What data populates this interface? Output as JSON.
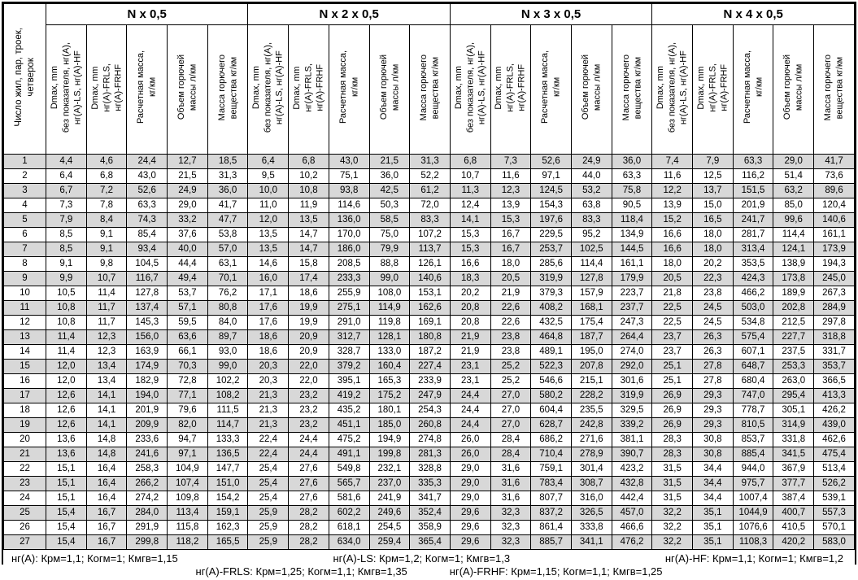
{
  "colors": {
    "border": "#000000",
    "stripe_gray": "#d8d8d8",
    "background": "#ffffff",
    "text": "#000000"
  },
  "table": {
    "corner_header": "Число жил, пар, троек,\nчетверок",
    "groups": [
      {
        "label": "N x 0,5"
      },
      {
        "label": "N x 2 x 0,5"
      },
      {
        "label": "N x 3 x 0,5"
      },
      {
        "label": "N x 4 x 0,5"
      }
    ],
    "sub_headers": [
      "Dmax, mm\nбез показателя, нг(А),\nнг(А)-LS, нг(А)-HF",
      "Dmax, mm\nнг(А)-FRLS,\nнг(А)-FRHF",
      "Расчетная масса,\nкг/км",
      "Объем горючей\nмассы л/км",
      "Масса горючего\nвещества кг/км"
    ],
    "rows": [
      {
        "n": "1",
        "values": [
          "4,4",
          "4,6",
          "24,4",
          "12,7",
          "18,5",
          "6,4",
          "6,8",
          "43,0",
          "21,5",
          "31,3",
          "6,8",
          "7,3",
          "52,6",
          "24,9",
          "36,0",
          "7,4",
          "7,9",
          "63,3",
          "29,0",
          "41,7"
        ]
      },
      {
        "n": "2",
        "values": [
          "6,4",
          "6,8",
          "43,0",
          "21,5",
          "31,3",
          "9,5",
          "10,2",
          "75,1",
          "36,0",
          "52,2",
          "10,7",
          "11,6",
          "97,1",
          "44,0",
          "63,3",
          "11,6",
          "12,5",
          "116,2",
          "51,4",
          "73,6"
        ]
      },
      {
        "n": "3",
        "values": [
          "6,7",
          "7,2",
          "52,6",
          "24,9",
          "36,0",
          "10,0",
          "10,8",
          "93,8",
          "42,5",
          "61,2",
          "11,3",
          "12,3",
          "124,5",
          "53,2",
          "75,8",
          "12,2",
          "13,7",
          "151,5",
          "63,2",
          "89,6"
        ]
      },
      {
        "n": "4",
        "values": [
          "7,3",
          "7,8",
          "63,3",
          "29,0",
          "41,7",
          "11,0",
          "11,9",
          "114,6",
          "50,3",
          "72,0",
          "12,4",
          "13,9",
          "154,3",
          "63,8",
          "90,5",
          "13,9",
          "15,0",
          "201,9",
          "85,0",
          "120,4"
        ]
      },
      {
        "n": "5",
        "values": [
          "7,9",
          "8,4",
          "74,3",
          "33,2",
          "47,7",
          "12,0",
          "13,5",
          "136,0",
          "58,5",
          "83,3",
          "14,1",
          "15,3",
          "197,6",
          "83,3",
          "118,4",
          "15,2",
          "16,5",
          "241,7",
          "99,6",
          "140,6"
        ]
      },
      {
        "n": "6",
        "values": [
          "8,5",
          "9,1",
          "85,4",
          "37,6",
          "53,8",
          "13,5",
          "14,7",
          "170,0",
          "75,0",
          "107,2",
          "15,3",
          "16,7",
          "229,5",
          "95,2",
          "134,9",
          "16,6",
          "18,0",
          "281,7",
          "114,4",
          "161,1"
        ]
      },
      {
        "n": "7",
        "values": [
          "8,5",
          "9,1",
          "93,4",
          "40,0",
          "57,0",
          "13,5",
          "14,7",
          "186,0",
          "79,9",
          "113,7",
          "15,3",
          "16,7",
          "253,7",
          "102,5",
          "144,5",
          "16,6",
          "18,0",
          "313,4",
          "124,1",
          "173,9"
        ]
      },
      {
        "n": "8",
        "values": [
          "9,1",
          "9,8",
          "104,5",
          "44,4",
          "63,1",
          "14,6",
          "15,8",
          "208,5",
          "88,8",
          "126,1",
          "16,6",
          "18,0",
          "285,6",
          "114,4",
          "161,1",
          "18,0",
          "20,2",
          "353,5",
          "138,9",
          "194,3"
        ]
      },
      {
        "n": "9",
        "values": [
          "9,9",
          "10,7",
          "116,7",
          "49,4",
          "70,1",
          "16,0",
          "17,4",
          "233,3",
          "99,0",
          "140,6",
          "18,3",
          "20,5",
          "319,9",
          "127,8",
          "179,9",
          "20,5",
          "22,3",
          "424,3",
          "173,8",
          "245,0"
        ]
      },
      {
        "n": "10",
        "values": [
          "10,5",
          "11,4",
          "127,8",
          "53,7",
          "76,2",
          "17,1",
          "18,6",
          "255,9",
          "108,0",
          "153,1",
          "20,2",
          "21,9",
          "379,3",
          "157,9",
          "223,7",
          "21,8",
          "23,8",
          "466,2",
          "189,9",
          "267,3"
        ]
      },
      {
        "n": "11",
        "values": [
          "10,8",
          "11,7",
          "137,4",
          "57,1",
          "80,8",
          "17,6",
          "19,9",
          "275,1",
          "114,9",
          "162,6",
          "20,8",
          "22,6",
          "408,2",
          "168,1",
          "237,7",
          "22,5",
          "24,5",
          "503,0",
          "202,8",
          "284,9"
        ]
      },
      {
        "n": "12",
        "values": [
          "10,8",
          "11,7",
          "145,3",
          "59,5",
          "84,0",
          "17,6",
          "19,9",
          "291,0",
          "119,8",
          "169,1",
          "20,8",
          "22,6",
          "432,5",
          "175,4",
          "247,3",
          "22,5",
          "24,5",
          "534,8",
          "212,5",
          "297,8"
        ]
      },
      {
        "n": "13",
        "values": [
          "11,4",
          "12,3",
          "156,0",
          "63,6",
          "89,7",
          "18,6",
          "20,9",
          "312,7",
          "128,1",
          "180,8",
          "21,9",
          "23,8",
          "464,8",
          "187,7",
          "264,4",
          "23,7",
          "26,3",
          "575,4",
          "227,7",
          "318,8"
        ]
      },
      {
        "n": "14",
        "values": [
          "11,4",
          "12,3",
          "163,9",
          "66,1",
          "93,0",
          "18,6",
          "20,9",
          "328,7",
          "133,0",
          "187,2",
          "21,9",
          "23,8",
          "489,1",
          "195,0",
          "274,0",
          "23,7",
          "26,3",
          "607,1",
          "237,5",
          "331,7"
        ]
      },
      {
        "n": "15",
        "values": [
          "12,0",
          "13,4",
          "174,9",
          "70,3",
          "99,0",
          "20,3",
          "22,0",
          "379,2",
          "160,4",
          "227,4",
          "23,1",
          "25,2",
          "522,3",
          "207,8",
          "292,0",
          "25,1",
          "27,8",
          "648,7",
          "253,3",
          "353,7"
        ]
      },
      {
        "n": "16",
        "values": [
          "12,0",
          "13,4",
          "182,9",
          "72,8",
          "102,2",
          "20,3",
          "22,0",
          "395,1",
          "165,3",
          "233,9",
          "23,1",
          "25,2",
          "546,6",
          "215,1",
          "301,6",
          "25,1",
          "27,8",
          "680,4",
          "263,0",
          "366,5"
        ]
      },
      {
        "n": "17",
        "values": [
          "12,6",
          "14,1",
          "194,0",
          "77,1",
          "108,2",
          "21,3",
          "23,2",
          "419,2",
          "175,2",
          "247,9",
          "24,4",
          "27,0",
          "580,2",
          "228,2",
          "319,9",
          "26,9",
          "29,3",
          "747,0",
          "295,4",
          "413,3"
        ]
      },
      {
        "n": "18",
        "values": [
          "12,6",
          "14,1",
          "201,9",
          "79,6",
          "111,5",
          "21,3",
          "23,2",
          "435,2",
          "180,1",
          "254,3",
          "24,4",
          "27,0",
          "604,4",
          "235,5",
          "329,5",
          "26,9",
          "29,3",
          "778,7",
          "305,1",
          "426,2"
        ]
      },
      {
        "n": "19",
        "values": [
          "12,6",
          "14,1",
          "209,9",
          "82,0",
          "114,7",
          "21,3",
          "23,2",
          "451,1",
          "185,0",
          "260,8",
          "24,4",
          "27,0",
          "628,7",
          "242,8",
          "339,2",
          "26,9",
          "29,3",
          "810,5",
          "314,9",
          "439,0"
        ]
      },
      {
        "n": "20",
        "values": [
          "13,6",
          "14,8",
          "233,6",
          "94,7",
          "133,3",
          "22,4",
          "24,4",
          "475,2",
          "194,9",
          "274,8",
          "26,0",
          "28,4",
          "686,2",
          "271,6",
          "381,1",
          "28,3",
          "30,8",
          "853,7",
          "331,8",
          "462,6"
        ]
      },
      {
        "n": "21",
        "values": [
          "13,6",
          "14,8",
          "241,6",
          "97,1",
          "136,5",
          "22,4",
          "24,4",
          "491,1",
          "199,8",
          "281,3",
          "26,0",
          "28,4",
          "710,4",
          "278,9",
          "390,7",
          "28,3",
          "30,8",
          "885,4",
          "341,5",
          "475,4"
        ]
      },
      {
        "n": "22",
        "values": [
          "15,1",
          "16,4",
          "258,3",
          "104,9",
          "147,7",
          "25,4",
          "27,6",
          "549,8",
          "232,1",
          "328,8",
          "29,0",
          "31,6",
          "759,1",
          "301,4",
          "423,2",
          "31,5",
          "34,4",
          "944,0",
          "367,9",
          "513,4"
        ]
      },
      {
        "n": "23",
        "values": [
          "15,1",
          "16,4",
          "266,2",
          "107,4",
          "151,0",
          "25,4",
          "27,6",
          "565,7",
          "237,0",
          "335,3",
          "29,0",
          "31,6",
          "783,4",
          "308,7",
          "432,8",
          "31,5",
          "34,4",
          "975,7",
          "377,7",
          "526,2"
        ]
      },
      {
        "n": "24",
        "values": [
          "15,1",
          "16,4",
          "274,2",
          "109,8",
          "154,2",
          "25,4",
          "27,6",
          "581,6",
          "241,9",
          "341,7",
          "29,0",
          "31,6",
          "807,7",
          "316,0",
          "442,4",
          "31,5",
          "34,4",
          "1007,4",
          "387,4",
          "539,1"
        ]
      },
      {
        "n": "25",
        "values": [
          "15,4",
          "16,7",
          "284,0",
          "113,4",
          "159,1",
          "25,9",
          "28,2",
          "602,2",
          "249,6",
          "352,4",
          "29,6",
          "32,3",
          "837,2",
          "326,5",
          "457,0",
          "32,2",
          "35,1",
          "1044,9",
          "400,7",
          "557,3"
        ]
      },
      {
        "n": "26",
        "values": [
          "15,4",
          "16,7",
          "291,9",
          "115,8",
          "162,3",
          "25,9",
          "28,2",
          "618,1",
          "254,5",
          "358,9",
          "29,6",
          "32,3",
          "861,4",
          "333,8",
          "466,6",
          "32,2",
          "35,1",
          "1076,6",
          "410,5",
          "570,1"
        ]
      },
      {
        "n": "27",
        "values": [
          "15,4",
          "16,7",
          "299,8",
          "118,2",
          "165,5",
          "25,9",
          "28,2",
          "634,0",
          "259,4",
          "365,4",
          "29,6",
          "32,3",
          "885,7",
          "341,1",
          "476,2",
          "32,2",
          "35,1",
          "1108,3",
          "420,2",
          "583,0"
        ]
      }
    ]
  },
  "footnotes": {
    "line1": [
      "нг(А): Крм=1,1;  Когм=1;  Кмгв=1,15",
      "нг(А)-LS: Крм=1,2;  Когм=1;  Кмгв=1,3",
      "нг(А)-HF: Крм=1,1;  Когм=1;  Кмгв=1,2"
    ],
    "line2": [
      "нг(А)-FRLS: Крм=1,25;  Когм=1,1;  Кмгв=1,35",
      "нг(А)-FRHF: Крм=1,15;  Когм=1,1;  Кмгв=1,25"
    ]
  }
}
